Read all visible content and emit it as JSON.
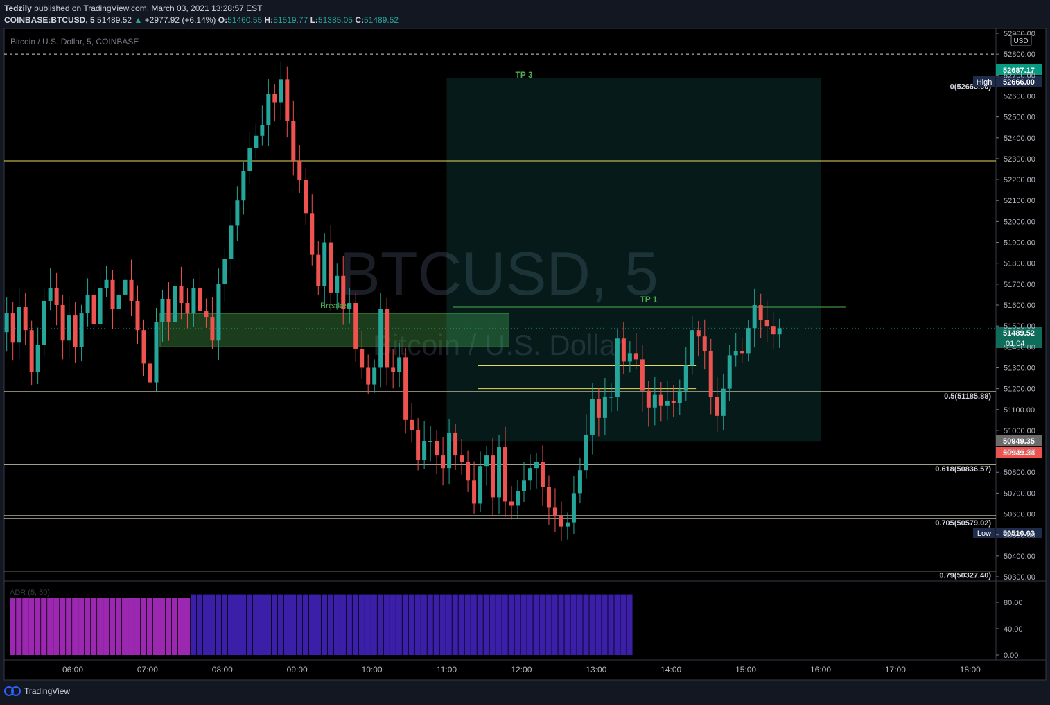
{
  "header": {
    "author": "Tedzily",
    "published_text": "published on TradingView.com, March 03, 2021 13:28:57 EST",
    "symbol": "COINBASE:BTCUSD, 5",
    "last": "51489.52",
    "change": "+2977.92 (+6.14%)",
    "o_label": "O:",
    "o": "51460.55",
    "h_label": "H:",
    "h": "51519.77",
    "l_label": "L:",
    "l": "51385.05",
    "c_label": "C:",
    "c": "51489.52"
  },
  "chart_title": "Bitcoin / U.S. Dollar, 5, COINBASE",
  "watermark": {
    "big": "BTCUSD, 5",
    "small": "Bitcoin / U.S. Dollar"
  },
  "currency_badge": "USD",
  "price_badges": [
    {
      "text": "52687.17",
      "color": "#089981"
    },
    {
      "text": "52666.00",
      "color": "#1e2b4a",
      "tag": "High"
    },
    {
      "text": "51489.52",
      "color": "#0f6b5a",
      "sub": "01:04"
    },
    {
      "text": "50949.35",
      "color": "#6c6c6c"
    },
    {
      "text": "50949.34",
      "color": "#ef5350"
    },
    {
      "text": "50510.03",
      "color": "#1e2b4a",
      "tag": "Low"
    }
  ],
  "fib_labels": [
    "0(52666.00)",
    "0.5(51185.88)",
    "0.618(50836.57)",
    "0.705(50579.02)",
    "0.79(50327.40)"
  ],
  "annotations": {
    "tp3": "TP 3",
    "tp1": "TP 1",
    "breaker": "Breaker"
  },
  "indicator": {
    "name": "ADR (5, 50)",
    "ticks": [
      "80.00",
      "40.00",
      "0.00"
    ]
  },
  "footer": {
    "brand": "TradingView"
  },
  "colors": {
    "up": "#26a69a",
    "down": "#ef5350",
    "adr_magenta": "#9c27b0",
    "adr_blue": "#3b1fa8"
  },
  "chart_data": {
    "type": "candlestick",
    "title": "Bitcoin / U.S. Dollar, 5, COINBASE",
    "interval_minutes": 5,
    "y_ticks": [
      52900,
      52800,
      52700,
      52600,
      52500,
      52400,
      52300,
      52200,
      52100,
      52000,
      51900,
      51800,
      51700,
      51600,
      51500,
      51400,
      51300,
      51200,
      51100,
      51000,
      50900,
      50800,
      50700,
      50600,
      50500,
      50400,
      50300
    ],
    "x_ticks": [
      "06:00",
      "07:00",
      "08:00",
      "09:00",
      "10:00",
      "11:00",
      "12:00",
      "13:00",
      "14:00",
      "15:00",
      "16:00",
      "17:00",
      "18:00"
    ],
    "ylim": [
      50270,
      52950
    ],
    "closes": [
      51470,
      51560,
      51420,
      51590,
      51480,
      51280,
      51410,
      51620,
      51680,
      51600,
      51430,
      51550,
      51400,
      51560,
      51650,
      51510,
      51680,
      51720,
      51580,
      51650,
      51720,
      51620,
      51480,
      51320,
      51230,
      51520,
      51630,
      51520,
      51690,
      51610,
      51560,
      51680,
      51570,
      51540,
      51430,
      51700,
      51820,
      51980,
      52100,
      52240,
      52350,
      52410,
      52460,
      52610,
      52570,
      52680,
      52480,
      52290,
      52200,
      52040,
      51840,
      51690,
      51900,
      51660,
      51740,
      51580,
      51610,
      51390,
      51300,
      51220,
      51300,
      51580,
      51300,
      51280,
      51350,
      51050,
      51000,
      50860,
      50950,
      50950,
      50880,
      50820,
      50990,
      50880,
      50850,
      50760,
      50650,
      50830,
      50880,
      50680,
      50920,
      50660,
      50640,
      50710,
      50760,
      50820,
      50850,
      50730,
      50630,
      50590,
      50540,
      50560,
      50700,
      50810,
      50980,
      51150,
      51060,
      51160,
      51160,
      51440,
      51330,
      51370,
      51340,
      51190,
      51110,
      51170,
      51120,
      51140,
      51130,
      51190,
      51310,
      51480,
      51450,
      51380,
      51160,
      51070,
      51200,
      51360,
      51380,
      51370,
      51490,
      51600,
      51530,
      51500,
      51460,
      51489.52
    ],
    "adr_values": [
      82,
      82,
      82,
      82,
      82,
      82,
      82,
      82,
      82,
      82,
      82,
      82,
      82,
      82,
      82,
      82,
      82,
      82,
      82,
      82,
      82,
      82,
      82,
      82,
      82,
      82,
      82,
      82,
      82,
      82,
      82,
      82,
      82,
      82,
      82,
      82,
      82,
      82,
      82,
      82,
      82,
      82,
      82,
      82,
      82,
      82,
      82,
      82,
      82,
      82,
      82,
      82,
      82,
      82,
      82,
      82,
      82,
      82,
      82,
      82,
      82,
      82,
      82,
      82,
      82,
      82,
      82,
      82,
      82,
      82,
      82,
      82,
      82,
      82,
      82,
      82,
      82,
      82,
      82,
      82,
      82,
      82,
      82,
      82,
      82,
      82,
      82,
      82,
      82,
      82,
      82,
      82,
      82,
      82,
      82,
      82,
      82,
      82,
      82,
      82,
      82,
      82,
      82,
      82,
      82,
      82,
      82,
      82,
      82,
      82,
      82,
      82,
      82,
      82,
      82,
      82,
      82,
      82,
      82,
      82,
      82,
      82,
      82,
      82,
      82,
      82
    ],
    "fib_levels": [
      52666.0,
      51185.88,
      50836.57,
      50579.02,
      50327.4
    ],
    "horizontal_lines": [
      52290,
      52800
    ],
    "zones": [
      {
        "name": "Breaker",
        "top": 51560,
        "bottom": 51400,
        "start_time": "07:10",
        "end_time": "11:50"
      },
      {
        "name": "Target",
        "top": 52687.17,
        "bottom": 50949.34,
        "start_time": "11:00",
        "end_time": "16:00"
      }
    ],
    "small_lines": [
      51310,
      51200
    ],
    "tp1": 51590
  }
}
